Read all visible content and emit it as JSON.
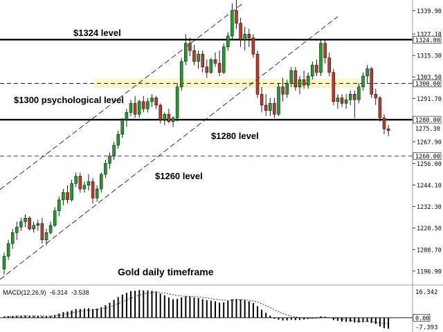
{
  "chart_data": {
    "type": "candlestick",
    "instrument_caption": "Gold daily timeframe",
    "price_axis": {
      "min": 1190,
      "max": 1345,
      "tick_labels": [
        "1339.90",
        "1327.10",
        "1315.30",
        "1303.50",
        "1291.70",
        "1267.90",
        "1256.00",
        "1244.10",
        "1232.30",
        "1220.50",
        "1208.70",
        "1196.90"
      ],
      "tick_values": [
        1339.9,
        1327.1,
        1315.3,
        1303.5,
        1291.7,
        1267.9,
        1256.0,
        1244.1,
        1232.3,
        1220.5,
        1208.7,
        1196.9
      ]
    },
    "levels": [
      {
        "value": 1324,
        "axis_label": "1324.00",
        "annotation": "$1324 level",
        "style": "solid"
      },
      {
        "value": 1300,
        "axis_label": "1300.00",
        "annotation": "$1300 psychological level",
        "style": "dashed-zone"
      },
      {
        "value": 1280,
        "axis_label": "1280.00",
        "annotation": "$1280 level",
        "style": "solid"
      },
      {
        "value": 1260,
        "axis_label": "1260.00",
        "annotation": "$1260 level",
        "style": "dashed"
      }
    ],
    "current_price_label": "1275.38",
    "current_price": 1275.38,
    "candles": [
      [
        1198,
        1207,
        1195,
        1205
      ],
      [
        1205,
        1214,
        1203,
        1212
      ],
      [
        1212,
        1220,
        1209,
        1218
      ],
      [
        1218,
        1224,
        1214,
        1221
      ],
      [
        1221,
        1226,
        1219,
        1224
      ],
      [
        1224,
        1228,
        1221,
        1226
      ],
      [
        1226,
        1227,
        1219,
        1220
      ],
      [
        1220,
        1224,
        1218,
        1222
      ],
      [
        1222,
        1225,
        1219,
        1223
      ],
      [
        1223,
        1226,
        1212,
        1214
      ],
      [
        1214,
        1220,
        1211,
        1218
      ],
      [
        1218,
        1224,
        1217,
        1222
      ],
      [
        1222,
        1232,
        1221,
        1230
      ],
      [
        1230,
        1238,
        1227,
        1236
      ],
      [
        1236,
        1242,
        1233,
        1240
      ],
      [
        1240,
        1244,
        1234,
        1236
      ],
      [
        1236,
        1247,
        1235,
        1245
      ],
      [
        1245,
        1251,
        1243,
        1249
      ],
      [
        1249,
        1251,
        1240,
        1242
      ],
      [
        1242,
        1246,
        1240,
        1244
      ],
      [
        1244,
        1250,
        1241,
        1246
      ],
      [
        1246,
        1248,
        1234,
        1237
      ],
      [
        1237,
        1244,
        1235,
        1242
      ],
      [
        1242,
        1251,
        1240,
        1250
      ],
      [
        1250,
        1258,
        1248,
        1256
      ],
      [
        1256,
        1262,
        1253,
        1260
      ],
      [
        1260,
        1268,
        1258,
        1266
      ],
      [
        1266,
        1274,
        1264,
        1272
      ],
      [
        1272,
        1281,
        1270,
        1280
      ],
      [
        1280,
        1286,
        1276,
        1284
      ],
      [
        1284,
        1291,
        1282,
        1289
      ],
      [
        1289,
        1293,
        1281,
        1283
      ],
      [
        1283,
        1291,
        1281,
        1290
      ],
      [
        1290,
        1293,
        1284,
        1286
      ],
      [
        1286,
        1292,
        1284,
        1290
      ],
      [
        1290,
        1294,
        1287,
        1292
      ],
      [
        1292,
        1293,
        1286,
        1288
      ],
      [
        1288,
        1289,
        1278,
        1280
      ],
      [
        1280,
        1284,
        1277,
        1283
      ],
      [
        1283,
        1286,
        1278,
        1279
      ],
      [
        1279,
        1282,
        1276,
        1281
      ],
      [
        1281,
        1300,
        1279,
        1298
      ],
      [
        1298,
        1314,
        1296,
        1312
      ],
      [
        1312,
        1327,
        1310,
        1322
      ],
      [
        1322,
        1325,
        1315,
        1318
      ],
      [
        1318,
        1321,
        1310,
        1312
      ],
      [
        1312,
        1318,
        1308,
        1316
      ],
      [
        1316,
        1318,
        1306,
        1309
      ],
      [
        1309,
        1313,
        1303,
        1306
      ],
      [
        1306,
        1314,
        1305,
        1313
      ],
      [
        1313,
        1317,
        1309,
        1311
      ],
      [
        1311,
        1318,
        1304,
        1306
      ],
      [
        1306,
        1322,
        1305,
        1320
      ],
      [
        1320,
        1328,
        1318,
        1326
      ],
      [
        1326,
        1344,
        1324,
        1340
      ],
      [
        1340,
        1346,
        1330,
        1333
      ],
      [
        1333,
        1336,
        1320,
        1324
      ],
      [
        1324,
        1331,
        1318,
        1327
      ],
      [
        1327,
        1330,
        1320,
        1325
      ],
      [
        1325,
        1327,
        1314,
        1316
      ],
      [
        1316,
        1318,
        1292,
        1294
      ],
      [
        1294,
        1298,
        1284,
        1288
      ],
      [
        1288,
        1294,
        1282,
        1285
      ],
      [
        1285,
        1292,
        1282,
        1289
      ],
      [
        1289,
        1292,
        1281,
        1283
      ],
      [
        1283,
        1300,
        1282,
        1298
      ],
      [
        1298,
        1303,
        1290,
        1294
      ],
      [
        1294,
        1302,
        1292,
        1300
      ],
      [
        1300,
        1309,
        1298,
        1307
      ],
      [
        1307,
        1309,
        1296,
        1298
      ],
      [
        1298,
        1304,
        1294,
        1302
      ],
      [
        1302,
        1307,
        1297,
        1299
      ],
      [
        1299,
        1306,
        1297,
        1304
      ],
      [
        1304,
        1312,
        1302,
        1310
      ],
      [
        1310,
        1313,
        1304,
        1306
      ],
      [
        1306,
        1324,
        1304,
        1322
      ],
      [
        1322,
        1324,
        1311,
        1314
      ],
      [
        1314,
        1317,
        1304,
        1306
      ],
      [
        1306,
        1308,
        1288,
        1290
      ],
      [
        1290,
        1294,
        1286,
        1292
      ],
      [
        1292,
        1294,
        1287,
        1289
      ],
      [
        1289,
        1294,
        1286,
        1291
      ],
      [
        1291,
        1296,
        1288,
        1294
      ],
      [
        1294,
        1296,
        1281,
        1291
      ],
      [
        1291,
        1300,
        1289,
        1298
      ],
      [
        1298,
        1306,
        1296,
        1304
      ],
      [
        1304,
        1310,
        1300,
        1308
      ],
      [
        1308,
        1309,
        1292,
        1294
      ],
      [
        1294,
        1297,
        1288,
        1292
      ],
      [
        1292,
        1293,
        1279,
        1281
      ],
      [
        1281,
        1283,
        1272,
        1275
      ],
      [
        1275,
        1277,
        1271,
        1274
      ]
    ],
    "macd": {
      "label": "MACD(12,26,9)",
      "value_1": "-6.314",
      "value_2": "-3.538",
      "axis_top_label": "16.342",
      "axis_zero_label": "0.00",
      "axis_bottom_label": "-7.393",
      "range": [
        -7.393,
        16.342
      ],
      "histogram": [
        0.5,
        0.8,
        1.0,
        1.1,
        1.1,
        1.2,
        1.1,
        1.0,
        1.0,
        0.8,
        0.8,
        1.0,
        1.6,
        2.4,
        3.2,
        3.5,
        4.2,
        5.0,
        5.0,
        5.2,
        5.4,
        5.0,
        5.2,
        6.0,
        7.2,
        8.6,
        10.2,
        11.8,
        13.2,
        14.2,
        15.2,
        15.4,
        15.8,
        15.6,
        15.6,
        15.4,
        15.0,
        13.8,
        12.8,
        11.6,
        10.6,
        10.8,
        11.6,
        12.2,
        12.0,
        11.6,
        11.2,
        10.6,
        10.0,
        9.8,
        9.4,
        8.6,
        8.8,
        9.6,
        10.6,
        10.8,
        10.4,
        10.0,
        9.4,
        8.4,
        6.6,
        4.6,
        2.8,
        1.2,
        -0.6,
        -1.2,
        -1.6,
        -1.6,
        -1.2,
        -1.4,
        -1.3,
        -1.0,
        -0.8,
        -0.4,
        -0.2,
        0.8,
        0.6,
        -0.2,
        -1.4,
        -1.8,
        -2.2,
        -2.4,
        -2.4,
        -2.8,
        -2.8,
        -2.6,
        -2.4,
        -3.0,
        -3.6,
        -5.0,
        -6.0,
        -6.314
      ],
      "signal": [
        0.6,
        0.7,
        0.8,
        0.9,
        1.0,
        1.0,
        1.0,
        1.0,
        1.0,
        1.0,
        0.9,
        0.9,
        1.1,
        1.4,
        1.8,
        2.2,
        2.7,
        3.2,
        3.6,
        4.0,
        4.3,
        4.5,
        4.7,
        5.0,
        5.5,
        6.1,
        7.0,
        8.0,
        9.1,
        10.1,
        11.1,
        12.0,
        12.8,
        13.5,
        14.0,
        14.3,
        14.5,
        14.4,
        14.1,
        13.7,
        13.1,
        12.6,
        12.4,
        12.3,
        12.2,
        12.1,
        11.9,
        11.6,
        11.3,
        10.9,
        10.6,
        10.2,
        10.0,
        9.9,
        10.0,
        10.1,
        10.2,
        10.2,
        10.0,
        9.6,
        8.9,
        8.0,
        7.0,
        5.8,
        4.5,
        3.4,
        2.4,
        1.5,
        0.9,
        0.4,
        0.0,
        -0.2,
        -0.3,
        -0.3,
        -0.3,
        -0.1,
        0.0,
        0.0,
        -0.2,
        -0.5,
        -0.9,
        -1.2,
        -1.5,
        -1.8,
        -2.0,
        -2.1,
        -2.2,
        -2.4,
        -2.6,
        -3.0,
        -3.3,
        -3.538
      ]
    }
  },
  "colors": {
    "bull": "#1e9e2a",
    "bear": "#c0392b",
    "zone": "#fbf6c8",
    "line": "#000000",
    "channel": "#000000",
    "grid_dash": "#000000"
  }
}
